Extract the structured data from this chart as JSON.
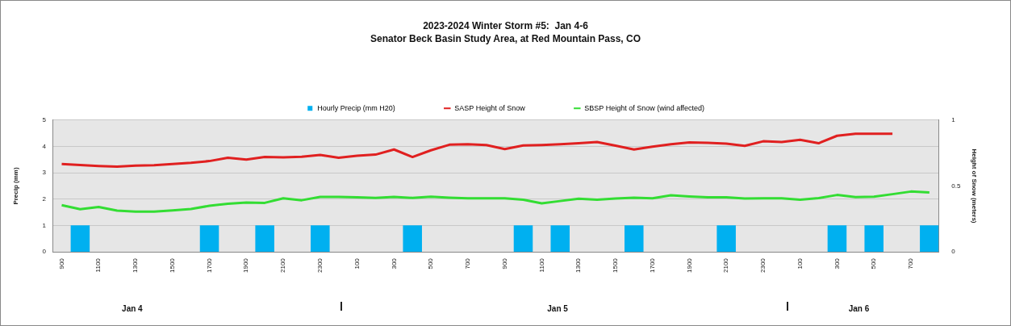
{
  "chart_data": {
    "type": "bar",
    "title": "2023-2024 Winter Storm #5:  Jan 4-6",
    "subtitle": "Senator Beck Basin Study Area, at Red Mountain Pass, CO",
    "categories": [
      "900",
      null,
      "1100",
      null,
      "1300",
      null,
      "1500",
      null,
      "1700",
      null,
      "1900",
      null,
      "2100",
      null,
      "2300",
      null,
      "100",
      null,
      "300",
      null,
      "500",
      null,
      "700",
      null,
      "900",
      null,
      "1100",
      null,
      "1300",
      null,
      "1500",
      null,
      "1700",
      null,
      "1900",
      null,
      "2100",
      null,
      "2300",
      null,
      "100",
      null,
      "300",
      null,
      "500",
      null,
      "700",
      null
    ],
    "series": [
      {
        "name": "Hourly Precip (mm H20)",
        "color": "#00b0f0",
        "values": [
          null,
          1,
          null,
          null,
          null,
          null,
          null,
          null,
          1,
          null,
          null,
          1,
          null,
          null,
          1,
          null,
          null,
          null,
          null,
          1,
          null,
          null,
          null,
          null,
          null,
          1,
          null,
          1,
          null,
          null,
          null,
          1,
          null,
          null,
          null,
          null,
          1,
          null,
          null,
          null,
          null,
          null,
          1,
          null,
          1,
          null,
          null,
          1
        ]
      },
      {
        "name": "SASP Height of Snow",
        "type": "line",
        "axis": "y2",
        "color": "#e02020",
        "values": [
          0.667,
          0.659,
          0.652,
          0.647,
          0.654,
          0.658,
          0.667,
          0.676,
          0.689,
          0.714,
          0.7,
          0.72,
          0.718,
          0.722,
          0.736,
          0.714,
          0.729,
          0.738,
          0.777,
          0.72,
          0.771,
          0.813,
          0.817,
          0.811,
          0.78,
          0.808,
          0.811,
          0.817,
          0.824,
          0.833,
          0.806,
          0.777,
          0.799,
          0.817,
          0.83,
          0.828,
          0.821,
          0.804,
          0.839,
          0.833,
          0.85,
          0.824,
          0.881,
          0.896,
          0.896,
          0.896,
          null,
          null
        ]
      },
      {
        "name": "SBSP Height of Snow (wind affected)",
        "type": "line",
        "axis": "y2",
        "color": "#33dd33",
        "values": [
          0.355,
          0.324,
          0.341,
          0.313,
          0.306,
          0.306,
          0.315,
          0.326,
          0.35,
          0.366,
          0.374,
          0.372,
          0.407,
          0.392,
          0.418,
          0.418,
          0.414,
          0.41,
          0.418,
          0.41,
          0.419,
          0.412,
          0.407,
          0.407,
          0.407,
          0.396,
          0.368,
          0.386,
          0.403,
          0.396,
          0.405,
          0.412,
          0.407,
          0.429,
          0.421,
          0.414,
          0.414,
          0.405,
          0.407,
          0.407,
          0.396,
          0.408,
          0.432,
          0.416,
          0.419,
          0.438,
          0.458,
          0.451
        ]
      }
    ],
    "ylabel": "Precip (mm)",
    "y2label": "Height of Snow (meters)",
    "ylim": [
      0,
      5
    ],
    "yticks": [
      0,
      1,
      2,
      3,
      4,
      5
    ],
    "y2lim": [
      0,
      1
    ],
    "y2ticks": [
      0,
      0.5,
      1
    ],
    "grid": "y",
    "legend": "top",
    "marker": "none",
    "annotations": [
      "Jan 4",
      "Jan 5",
      "Jan 6"
    ]
  }
}
